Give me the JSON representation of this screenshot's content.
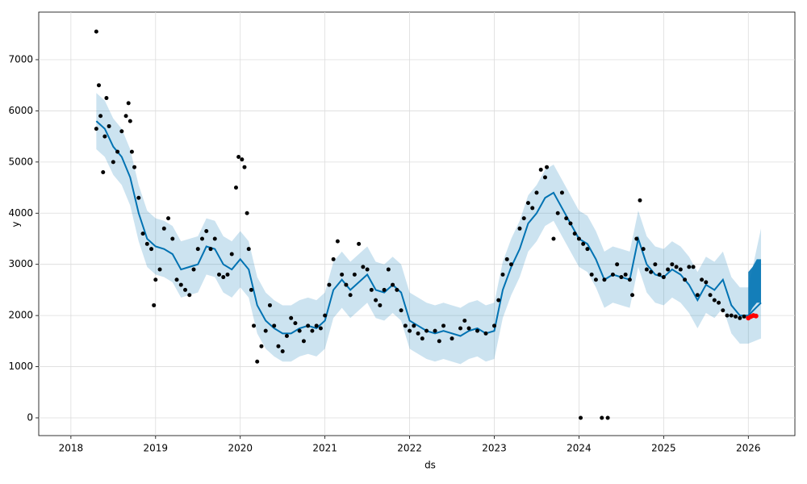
{
  "chart_data": {
    "type": "line",
    "xlabel": "ds",
    "ylabel": "y",
    "xlim": [
      2017.62,
      2026.55
    ],
    "ylim": [
      -347,
      7930
    ],
    "xticks": [
      2018,
      2019,
      2020,
      2021,
      2022,
      2023,
      2024,
      2025,
      2026
    ],
    "yticks": [
      0,
      1000,
      2000,
      3000,
      4000,
      5000,
      6000,
      7000
    ],
    "grid": true,
    "fit": {
      "color": "#0072B2",
      "x": [
        2018.3,
        2018.4,
        2018.5,
        2018.6,
        2018.7,
        2018.8,
        2018.9,
        2019.0,
        2019.1,
        2019.2,
        2019.3,
        2019.4,
        2019.5,
        2019.6,
        2019.7,
        2019.8,
        2019.9,
        2020.0,
        2020.1,
        2020.2,
        2020.3,
        2020.4,
        2020.5,
        2020.6,
        2020.7,
        2020.8,
        2020.9,
        2021.0,
        2021.1,
        2021.2,
        2021.3,
        2021.4,
        2021.5,
        2021.6,
        2021.7,
        2021.8,
        2021.9,
        2022.0,
        2022.1,
        2022.2,
        2022.3,
        2022.4,
        2022.5,
        2022.6,
        2022.7,
        2022.8,
        2022.9,
        2023.0,
        2023.1,
        2023.2,
        2023.3,
        2023.4,
        2023.5,
        2023.6,
        2023.7,
        2023.8,
        2023.9,
        2024.0,
        2024.1,
        2024.2,
        2024.3,
        2024.4,
        2024.5,
        2024.6,
        2024.7,
        2024.8,
        2024.9,
        2025.0,
        2025.1,
        2025.2,
        2025.3,
        2025.4,
        2025.5,
        2025.6,
        2025.7,
        2025.8,
        2025.9,
        2026.0,
        2026.15
      ],
      "values": [
        5800,
        5650,
        5300,
        5100,
        4700,
        4000,
        3500,
        3350,
        3300,
        3200,
        2900,
        2950,
        3000,
        3350,
        3300,
        3000,
        2900,
        3100,
        2900,
        2200,
        1900,
        1750,
        1650,
        1650,
        1750,
        1800,
        1750,
        1900,
        2500,
        2700,
        2500,
        2650,
        2800,
        2500,
        2450,
        2600,
        2450,
        1900,
        1800,
        1700,
        1650,
        1700,
        1650,
        1600,
        1700,
        1750,
        1650,
        1700,
        2500,
        2950,
        3300,
        3800,
        4000,
        4300,
        4400,
        4100,
        3800,
        3500,
        3400,
        3100,
        2700,
        2800,
        2750,
        2700,
        3500,
        3000,
        2800,
        2750,
        2900,
        2800,
        2600,
        2300,
        2600,
        2500,
        2700,
        2200,
        2000,
        2000,
        2250
      ],
      "lower": [
        5250,
        5100,
        4750,
        4550,
        4150,
        3450,
        2950,
        2800,
        2750,
        2650,
        2350,
        2400,
        2450,
        2800,
        2750,
        2450,
        2350,
        2550,
        2350,
        1650,
        1350,
        1200,
        1100,
        1100,
        1200,
        1250,
        1200,
        1350,
        1950,
        2150,
        1950,
        2100,
        2250,
        1950,
        1900,
        2050,
        1900,
        1350,
        1250,
        1150,
        1100,
        1150,
        1100,
        1050,
        1150,
        1200,
        1100,
        1150,
        1950,
        2400,
        2750,
        3250,
        3450,
        3750,
        3850,
        3550,
        3250,
        2950,
        2850,
        2550,
        2150,
        2250,
        2200,
        2150,
        2950,
        2450,
        2250,
        2200,
        2350,
        2250,
        2050,
        1750,
        2050,
        1950,
        2150,
        1650,
        1450,
        1450,
        1550
      ],
      "upper": [
        6350,
        6200,
        5850,
        5650,
        5250,
        4550,
        4050,
        3900,
        3850,
        3750,
        3450,
        3500,
        3550,
        3900,
        3850,
        3550,
        3450,
        3650,
        3450,
        2750,
        2450,
        2300,
        2200,
        2200,
        2300,
        2350,
        2300,
        2450,
        3050,
        3250,
        3050,
        3200,
        3350,
        3050,
        3000,
        3150,
        3000,
        2450,
        2350,
        2250,
        2200,
        2250,
        2200,
        2150,
        2250,
        2300,
        2200,
        2250,
        3050,
        3500,
        3850,
        4350,
        4550,
        4850,
        4950,
        4650,
        4350,
        4050,
        3950,
        3650,
        3250,
        3350,
        3300,
        3250,
        4050,
        3550,
        3350,
        3300,
        3450,
        3350,
        3150,
        2850,
        3150,
        3050,
        3250,
        2750,
        2550,
        2550,
        3700
      ]
    },
    "forecast": {
      "color": "#0072B2",
      "x": [
        2026.0,
        2026.05,
        2026.1,
        2026.15
      ],
      "lower": [
        2000,
        2150,
        2250,
        2250
      ],
      "upper": [
        2850,
        2950,
        3100,
        3100
      ]
    },
    "observed": {
      "color": "#000000",
      "x": [
        2018.3,
        2018.3,
        2018.33,
        2018.35,
        2018.38,
        2018.4,
        2018.42,
        2018.45,
        2018.5,
        2018.55,
        2018.6,
        2018.65,
        2018.68,
        2018.7,
        2018.72,
        2018.75,
        2018.8,
        2018.85,
        2018.9,
        2018.95,
        2018.98,
        2019.0,
        2019.05,
        2019.1,
        2019.15,
        2019.2,
        2019.25,
        2019.3,
        2019.35,
        2019.4,
        2019.45,
        2019.5,
        2019.55,
        2019.6,
        2019.65,
        2019.7,
        2019.75,
        2019.8,
        2019.85,
        2019.9,
        2019.95,
        2019.98,
        2020.02,
        2020.05,
        2020.08,
        2020.1,
        2020.13,
        2020.16,
        2020.2,
        2020.25,
        2020.3,
        2020.35,
        2020.4,
        2020.45,
        2020.5,
        2020.55,
        2020.6,
        2020.65,
        2020.7,
        2020.75,
        2020.8,
        2020.85,
        2020.9,
        2020.95,
        2021.0,
        2021.05,
        2021.1,
        2021.15,
        2021.2,
        2021.25,
        2021.3,
        2021.35,
        2021.4,
        2021.45,
        2021.5,
        2021.55,
        2021.6,
        2021.65,
        2021.7,
        2021.75,
        2021.8,
        2021.85,
        2021.9,
        2021.95,
        2022.0,
        2022.05,
        2022.1,
        2022.15,
        2022.2,
        2022.3,
        2022.35,
        2022.4,
        2022.5,
        2022.6,
        2022.65,
        2022.7,
        2022.8,
        2022.9,
        2023.0,
        2023.05,
        2023.1,
        2023.15,
        2023.2,
        2023.3,
        2023.35,
        2023.4,
        2023.45,
        2023.5,
        2023.55,
        2023.6,
        2023.62,
        2023.7,
        2023.75,
        2023.8,
        2023.85,
        2023.9,
        2023.95,
        2024.0,
        2024.02,
        2024.05,
        2024.1,
        2024.15,
        2024.2,
        2024.27,
        2024.3,
        2024.34,
        2024.4,
        2024.45,
        2024.5,
        2024.55,
        2024.6,
        2024.63,
        2024.68,
        2024.72,
        2024.76,
        2024.8,
        2024.85,
        2024.9,
        2024.95,
        2025.0,
        2025.05,
        2025.1,
        2025.15,
        2025.2,
        2025.25,
        2025.3,
        2025.35,
        2025.4,
        2025.45,
        2025.5,
        2025.55,
        2025.6,
        2025.65,
        2025.7,
        2025.75,
        2025.8,
        2025.85,
        2025.9,
        2025.95
      ],
      "values": [
        7550,
        5650,
        6500,
        5900,
        4800,
        5500,
        6250,
        5700,
        5000,
        5200,
        5600,
        5900,
        6150,
        5800,
        5200,
        4900,
        4300,
        3600,
        3400,
        3300,
        2200,
        2700,
        2900,
        3700,
        3900,
        3500,
        2700,
        2600,
        2500,
        2400,
        2900,
        3300,
        3500,
        3650,
        3300,
        3500,
        2800,
        2750,
        2800,
        3200,
        4500,
        5100,
        5050,
        4900,
        4000,
        3300,
        2500,
        1800,
        1100,
        1400,
        1700,
        2200,
        1800,
        1400,
        1300,
        1600,
        1950,
        1850,
        1700,
        1500,
        1800,
        1700,
        1800,
        1750,
        2000,
        2600,
        3100,
        3450,
        2800,
        2600,
        2400,
        2800,
        3400,
        2950,
        2900,
        2500,
        2300,
        2200,
        2500,
        2900,
        2600,
        2500,
        2100,
        1800,
        1700,
        1800,
        1650,
        1550,
        1700,
        1700,
        1500,
        1800,
        1550,
        1750,
        1900,
        1750,
        1700,
        1650,
        1800,
        2300,
        2800,
        3100,
        3000,
        3700,
        3900,
        4200,
        4100,
        4400,
        4850,
        4700,
        4900,
        3500,
        4000,
        4400,
        3900,
        3800,
        3600,
        3500,
        0,
        3400,
        3300,
        2800,
        2700,
        0,
        2700,
        0,
        2800,
        3000,
        2750,
        2800,
        2700,
        2400,
        3500,
        4250,
        3300,
        2900,
        2850,
        3000,
        2800,
        2750,
        2900,
        3000,
        2950,
        2900,
        2700,
        2950,
        2950,
        2400,
        2700,
        2650,
        2400,
        2300,
        2250,
        2100,
        2000,
        2000,
        1980,
        1950,
        1980
      ]
    },
    "recent": {
      "color": "#ff0000",
      "x": [
        2026.0,
        2026.03,
        2026.06,
        2026.09
      ],
      "values": [
        1950,
        1980,
        2000,
        1990
      ]
    }
  }
}
